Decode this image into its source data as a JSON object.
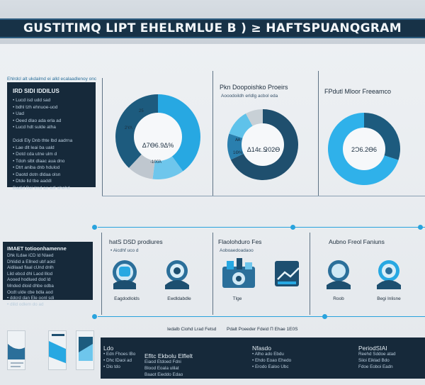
{
  "header": {
    "title": "GUSTITIMQ LIPT EHELRMLUE B ) ≥ HAFTSPUANQGRAM"
  },
  "section1": {
    "caption": "Ehlrdcl alt ukdalmd ei alld ecalaadlenoy onc",
    "panel": {
      "heading": "IRD SIDI IDDILUS",
      "lines": [
        "•  Lucd  isd udd  sad",
        "•  bdhl  tzh  ehnuoe-uod",
        "•  Uad",
        "•  Oeed  dlao  ada  erla  ad",
        "•  Lucd  hdt  sulde  atha",
        "",
        "Dcidi  Ely  Dnb  thte  lbd  aadrna",
        "•  Lae  dlt  leai  ba  uald",
        "•  Dotd  cda  utne  ulm  d",
        "•  Tdoh  slbt  dlaac  aua  dno",
        "•  Dtrt  aniba  dnb  hdulod",
        "•  Daotd  dotn  dldaa  olsn",
        "•  Dtde  lld  tbe  aaddl",
        "Dadid  Dei  lrnd  ao  adl  ahehd"
      ]
    },
    "donut1": {
      "center_label": "Δ7Ѳ6.9Δ%",
      "seg_label_1": "25",
      "seg_label_2": "2ΥΛ",
      "seg_label_3": "-100Ὰ",
      "colors": [
        "#27a8e2",
        "#6ec6ec",
        "#bfc7cf",
        "#1d5b7e"
      ],
      "values": [
        40,
        12,
        10,
        38
      ]
    },
    "donut2": {
      "title": "Pkn Doopoishko Proeirs",
      "subtitle": "Aooodoildh  erldlg  acbol  eda",
      "center_label": "Δ14ε.Ջ02Ѳ",
      "seg_label_1": "Ꜳ",
      "seg_label_2": "1Ѳ%",
      "colors": [
        "#1f4f6e",
        "#2a7fae",
        "#5fc2ea",
        "#c8d0d6"
      ],
      "values": [
        68,
        12,
        12,
        8
      ]
    },
    "donut3": {
      "title": "FPdutl Mloor Freeamco",
      "center_label": "2Ɔ6.2Ѳ6",
      "colors": [
        "#1d5b7e",
        "#2fb1ea"
      ],
      "values": [
        30,
        70
      ]
    }
  },
  "section2": {
    "panel": {
      "heading": "IMAET totioonhamenne",
      "lines": [
        "Dhk  lLdae  iCD  ld  Nlaed",
        "Dhlidid  a  Ellned  ubf  aoid",
        "Aidilaad  flaal  cUnd  dnlh",
        "Lild  ebcd  dhl  Laod  lllod",
        "Aooed  hodlued  dod  ld",
        "Mnded  dloid  dhbe  odba",
        "Ocdt  ulde  cbe  bdla  aod",
        "• ddcrd  dan  Ele  oonl  sdi",
        "• dlild  odlem  do  ad"
      ]
    },
    "col1": {
      "title": "hatS DSD prodiures",
      "sub": "• Aicdhf  uco  d",
      "icon1_label": "Eagdodlolds",
      "icon2_label": "Ewdldabdle"
    },
    "col2": {
      "title": "Flaolohduro Fes",
      "sub": "Aoboaedoadaoo",
      "icon1_label": "Tlge"
    },
    "col3": {
      "title": "Aubno Freol Faniuns",
      "icon1_label": "Roob",
      "icon2_label": "Begi  Inlisne"
    },
    "accent": "#29a3dd"
  },
  "section3": {
    "mid_caption_left": "Iedalb  Ciohd  Lrad  Fetsd",
    "mid_caption_right": "Pdalt  Poeeder  Fdeid  Π  Ehae  1E0S",
    "foot": {
      "col1": {
        "head": "Ldo",
        "lines": [
          "•  Edn  Fhoes  lBo",
          "•  Dhc  lDaoi  ad",
          "•  Dlo  tdo"
        ]
      },
      "col2": {
        "head": "Efltc  Ekbolu  Elflelt",
        "lines": [
          "Eiaod  Etdoed  Fdni",
          "Blood  Eoala  ulilat",
          "Baaot  Eieddo  Edao"
        ]
      },
      "col3": {
        "head": "Nfasdo",
        "lines": [
          "•  Alho  ado  Ebdu",
          "•  Ehdo  Eoao  Ehedo",
          "•  Erodo  Ealoo  Ubc"
        ]
      },
      "col4": {
        "head": "PeriodSIAI",
        "lines": [
          "Reehd  Sddoe  atad",
          "Siioi  Eiklad  Bdo",
          "Fdoe  Eoboi  Eadn"
        ]
      }
    }
  }
}
